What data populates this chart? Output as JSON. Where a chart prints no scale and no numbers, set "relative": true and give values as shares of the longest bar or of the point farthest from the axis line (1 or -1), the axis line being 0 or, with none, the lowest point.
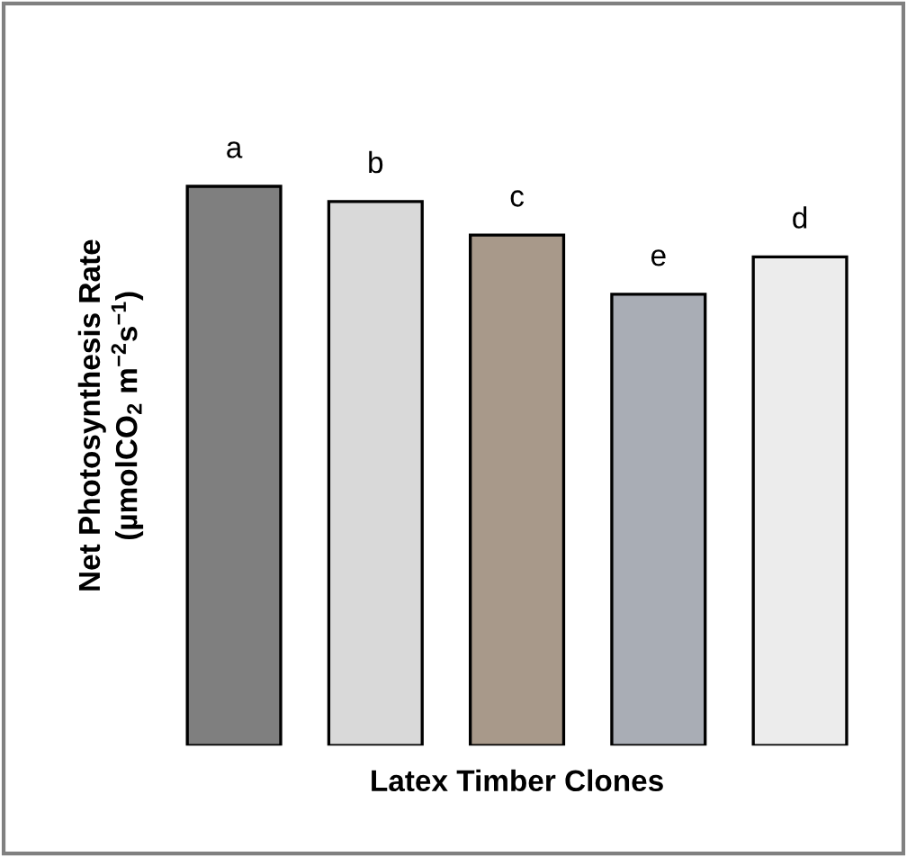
{
  "chart_data": {
    "type": "bar",
    "relative": true,
    "xlabel": "Latex Timber Clones",
    "ylabel": "Net Photosynthesis Rate\n(µmolCO$_{2}$ m$^{−2}$s$^{−1}$)",
    "categories": [
      null,
      null,
      null,
      null,
      null
    ],
    "values": [
      1,
      0.973,
      0.913,
      0.807,
      0.874
    ],
    "colors": [
      "#7f7f7f",
      "#d9d9d9",
      "#a8998a",
      "#a9adb5",
      "#ececec"
    ],
    "annotations": [
      "a",
      "b",
      "c",
      "e",
      "d"
    ]
  }
}
